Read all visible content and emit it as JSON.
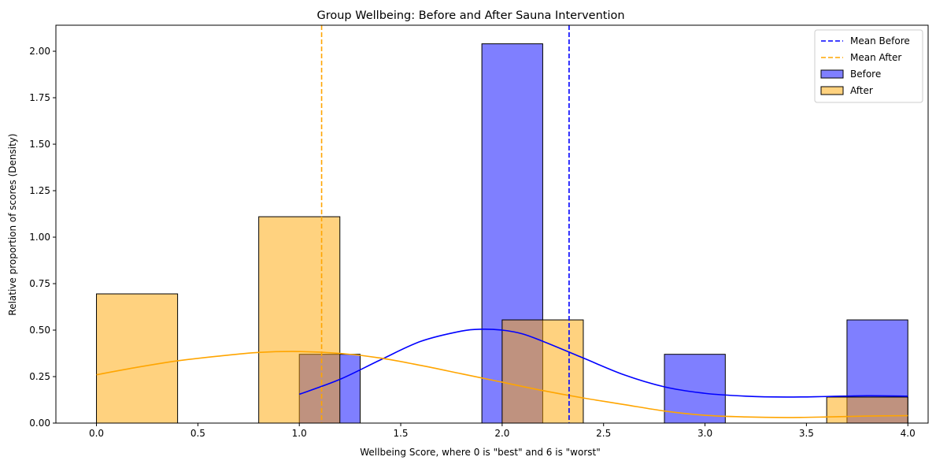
{
  "chart_data": {
    "type": "bar",
    "title": "Group Wellbeing: Before and After Sauna Intervention",
    "xlabel": "Wellbeing Score, where 0 is \"best\" and 6 is \"worst\"",
    "ylabel": "Relative proportion of scores (Density)",
    "xlim": [
      -0.2,
      4.1
    ],
    "ylim": [
      0,
      2.14
    ],
    "x_ticks": [
      0.0,
      0.5,
      1.0,
      1.5,
      2.0,
      2.5,
      3.0,
      3.5,
      4.0
    ],
    "x_tick_labels": [
      "0.0",
      "0.5",
      "1.0",
      "1.5",
      "2.0",
      "2.5",
      "3.0",
      "3.5",
      "4.0"
    ],
    "y_ticks": [
      0.0,
      0.25,
      0.5,
      0.75,
      1.0,
      1.25,
      1.5,
      1.75,
      2.0
    ],
    "y_tick_labels": [
      "0.00",
      "0.25",
      "0.50",
      "0.75",
      "1.00",
      "1.25",
      "1.50",
      "1.75",
      "2.00"
    ],
    "grid": false,
    "legend_position": "top-right",
    "series": [
      {
        "name": "Before",
        "color": "#0000ff",
        "fill_opacity": 0.5,
        "bins": [
          {
            "x0": 1.0,
            "x1": 1.3,
            "value": 0.37
          },
          {
            "x0": 1.9,
            "x1": 2.2,
            "value": 2.04
          },
          {
            "x0": 2.8,
            "x1": 3.1,
            "value": 0.37
          },
          {
            "x0": 3.7,
            "x1": 4.0,
            "value": 0.555
          }
        ],
        "kde": {
          "x": [
            1.0,
            1.2,
            1.4,
            1.6,
            1.8,
            1.9,
            2.0,
            2.1,
            2.2,
            2.4,
            2.6,
            2.8,
            3.0,
            3.2,
            3.4,
            3.6,
            3.8,
            4.0
          ],
          "y": [
            0.155,
            0.235,
            0.34,
            0.44,
            0.495,
            0.505,
            0.5,
            0.48,
            0.44,
            0.35,
            0.26,
            0.195,
            0.16,
            0.145,
            0.14,
            0.143,
            0.147,
            0.145
          ]
        },
        "mean": 2.33,
        "mean_label": "Mean Before"
      },
      {
        "name": "After",
        "color": "#ffa500",
        "fill_opacity": 0.5,
        "bins": [
          {
            "x0": 0.0,
            "x1": 0.4,
            "value": 0.695
          },
          {
            "x0": 0.8,
            "x1": 1.2,
            "value": 1.11
          },
          {
            "x0": 2.0,
            "x1": 2.4,
            "value": 0.555
          },
          {
            "x0": 3.6,
            "x1": 4.0,
            "value": 0.14
          }
        ],
        "kde": {
          "x": [
            0.0,
            0.2,
            0.4,
            0.6,
            0.8,
            1.0,
            1.2,
            1.4,
            1.6,
            1.8,
            2.0,
            2.2,
            2.4,
            2.6,
            2.8,
            3.0,
            3.2,
            3.4,
            3.6,
            3.8,
            4.0
          ],
          "y": [
            0.26,
            0.3,
            0.335,
            0.36,
            0.38,
            0.385,
            0.375,
            0.35,
            0.31,
            0.265,
            0.22,
            0.175,
            0.135,
            0.1,
            0.065,
            0.042,
            0.033,
            0.03,
            0.033,
            0.038,
            0.04
          ]
        },
        "mean": 1.11,
        "mean_label": "Mean After"
      }
    ],
    "legend": [
      {
        "label": "Mean Before",
        "kind": "dashed-line",
        "series": 0
      },
      {
        "label": "Mean After",
        "kind": "dashed-line",
        "series": 1
      },
      {
        "label": "Before",
        "kind": "patch",
        "series": 0
      },
      {
        "label": "After",
        "kind": "patch",
        "series": 1
      }
    ]
  }
}
